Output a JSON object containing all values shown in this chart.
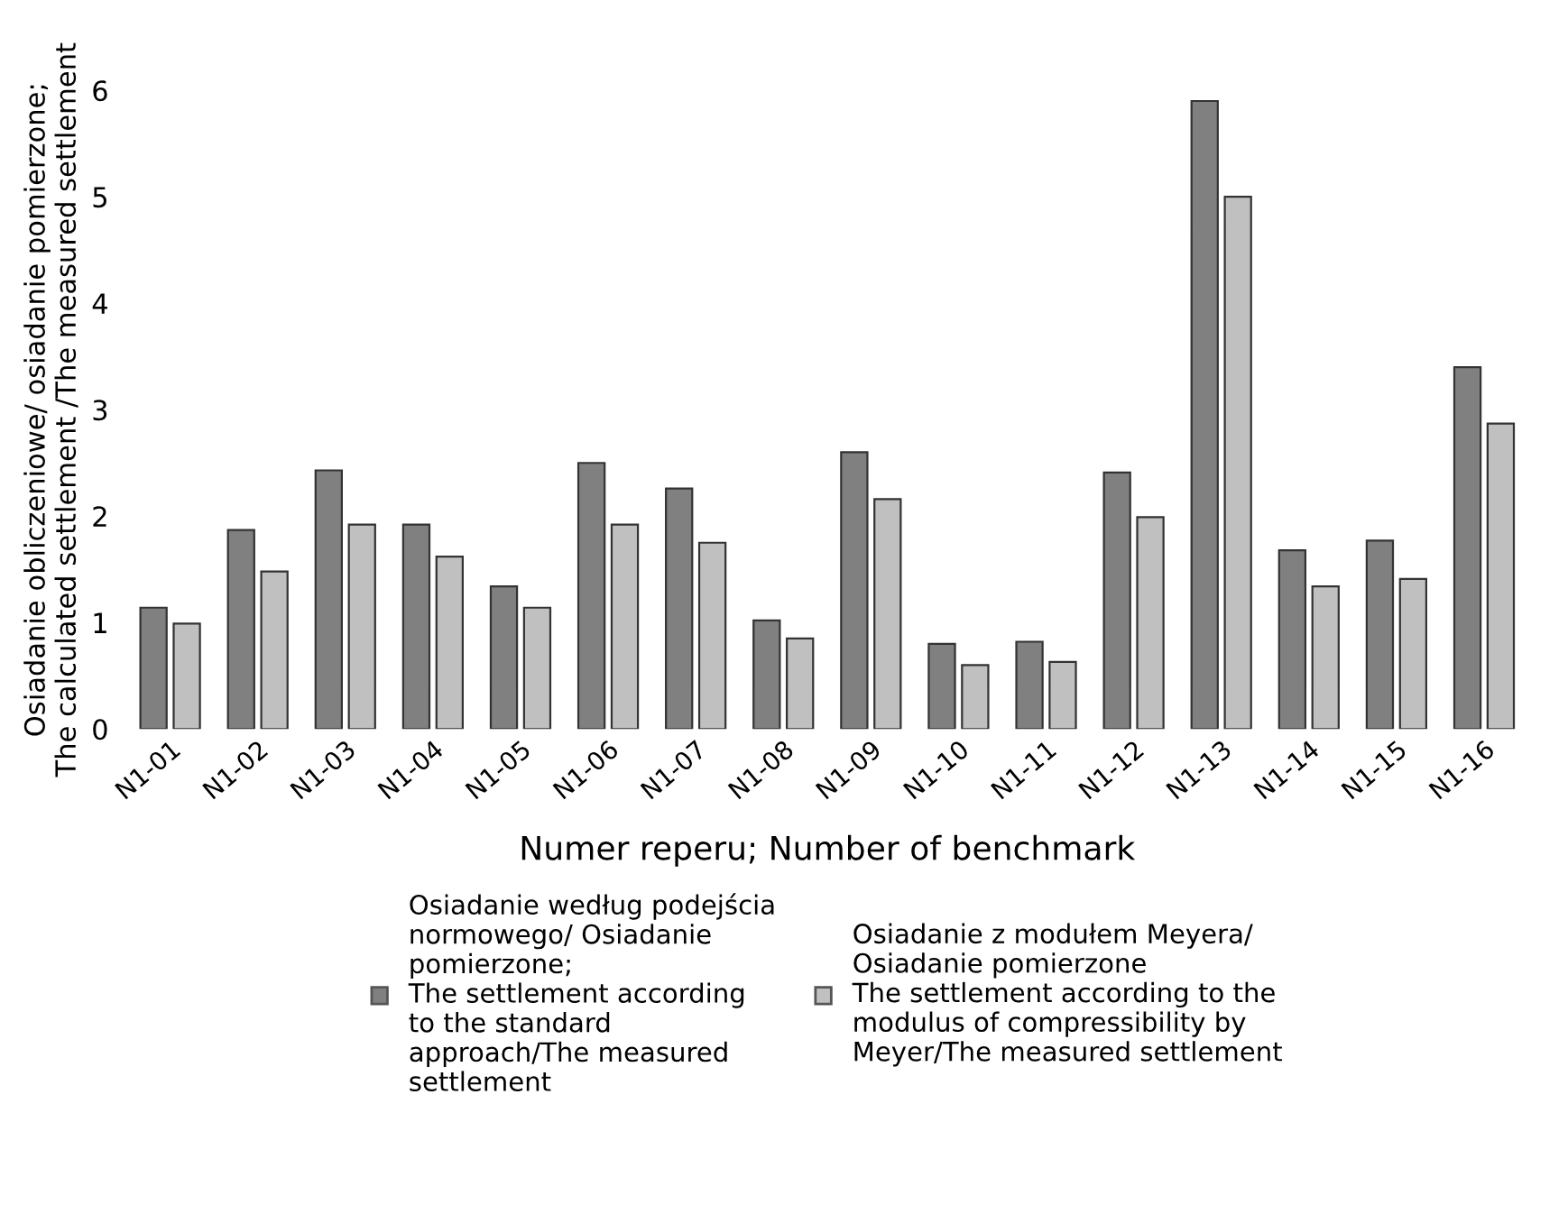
{
  "chart_data": {
    "type": "bar",
    "xlabel": "Numer reperu; Number of benchmark",
    "ylabel": "Osiadanie obliczeniowe/ osiadanie pomierzone;\nThe calculated settlement /The measured settlement",
    "categories": [
      "N1-01",
      "N1-02",
      "N1-03",
      "N1-04",
      "N1-05",
      "N1-06",
      "N1-07",
      "N1-08",
      "N1-09",
      "N1-10",
      "N1-11",
      "N1-12",
      "N1-13",
      "N1-14",
      "N1-15",
      "N1-16"
    ],
    "series": [
      {
        "name": "Osiadanie według podejścia\nnormowego/ Osiadanie\npomierzone;\nThe settlement according\nto the standard\napproach/The measured\nsettlement",
        "color": "#808080",
        "values": [
          1.14,
          1.87,
          2.43,
          1.92,
          1.34,
          2.5,
          2.26,
          1.02,
          2.6,
          0.8,
          0.82,
          2.41,
          5.9,
          1.68,
          1.77,
          3.4
        ]
      },
      {
        "name": "Osiadanie z modułem Meyera/\nOsiadanie pomierzone\nThe settlement according to the\nmodulus of compressibility by\nMeyer/The measured settlement",
        "color": "#c0c0c0",
        "values": [
          0.99,
          1.48,
          1.92,
          1.62,
          1.14,
          1.92,
          1.75,
          0.85,
          2.16,
          0.6,
          0.63,
          1.99,
          5.0,
          1.34,
          1.41,
          2.87
        ]
      }
    ],
    "ylim": [
      0,
      6
    ],
    "yticks": [
      0,
      1,
      2,
      3,
      4,
      5,
      6
    ],
    "grid": false,
    "legend": "bottom"
  }
}
